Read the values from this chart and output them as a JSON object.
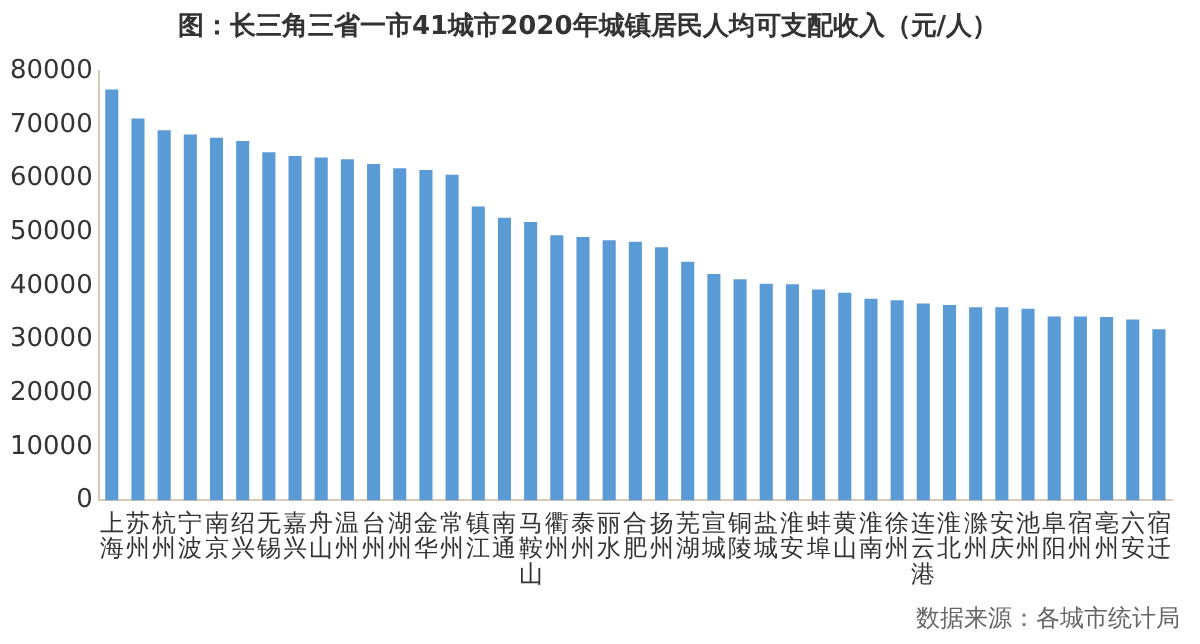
{
  "chart_data": {
    "type": "bar",
    "title": "图：长三角三省一市41城市2020年城镇居民人均可支配收入（元/人）",
    "categories": [
      "上海",
      "苏州",
      "杭州",
      "宁波",
      "南京",
      "绍兴",
      "无锡",
      "嘉兴",
      "舟山",
      "温州",
      "台州",
      "湖州",
      "金华",
      "常州",
      "镇江",
      "南通",
      "马鞍山",
      "衢州",
      "泰州",
      "丽水",
      "合肥",
      "扬州",
      "芜湖",
      "宣城",
      "铜陵",
      "盐城",
      "淮安",
      "蚌埠",
      "黄山",
      "淮南",
      "徐州",
      "连云港",
      "淮北",
      "滁州",
      "安庆",
      "池州",
      "阜阳",
      "宿州",
      "亳州",
      "六安",
      "宿迁"
    ],
    "values": [
      76600,
      71200,
      69000,
      68200,
      67600,
      67000,
      64900,
      64200,
      63900,
      63600,
      62700,
      61900,
      61600,
      60700,
      54800,
      52700,
      51900,
      49400,
      49100,
      48500,
      48200,
      47200,
      44500,
      42200,
      41200,
      40400,
      40300,
      39300,
      38700,
      37600,
      37300,
      36700,
      36400,
      36000,
      36000,
      35700,
      34300,
      34300,
      34200,
      33700,
      31900
    ],
    "color": "#5b9bd5",
    "ylim": [
      0,
      80000
    ],
    "yticks": [
      0,
      10000,
      20000,
      30000,
      40000,
      50000,
      60000,
      70000,
      80000
    ],
    "grid": false,
    "legend": false,
    "annotations": [
      "数据来源：各城市统计局"
    ]
  }
}
